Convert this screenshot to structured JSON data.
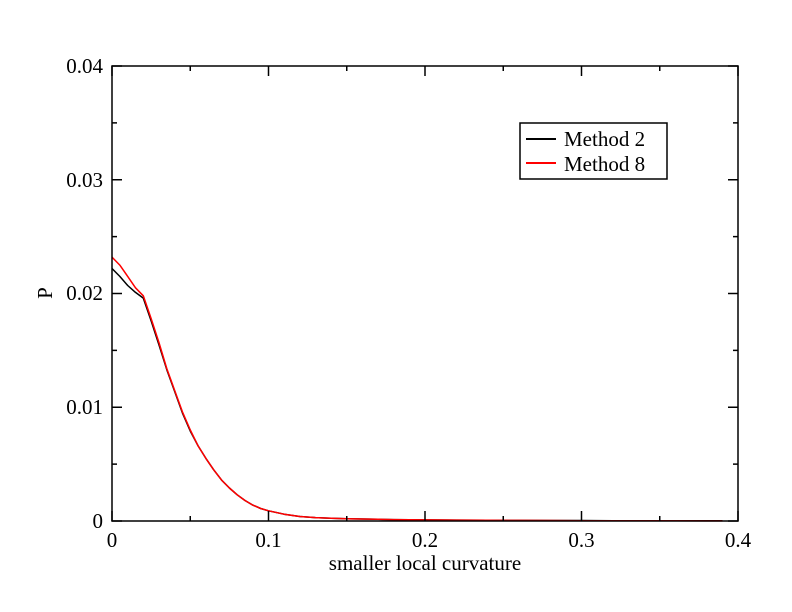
{
  "chart_data": {
    "type": "line",
    "title": "",
    "xlabel": "smaller local curvature",
    "ylabel": "P",
    "xlim": [
      0,
      0.4
    ],
    "ylim": [
      0,
      0.04
    ],
    "x_ticks": [
      "0",
      "0.1",
      "0.2",
      "0.3",
      "0.4"
    ],
    "y_ticks": [
      "0",
      "0.01",
      "0.02",
      "0.03",
      "0.04"
    ],
    "grid": false,
    "legend_position": "top-right",
    "x": [
      0.0,
      0.005,
      0.01,
      0.015,
      0.02,
      0.025,
      0.03,
      0.035,
      0.04,
      0.045,
      0.05,
      0.055,
      0.06,
      0.065,
      0.07,
      0.075,
      0.08,
      0.085,
      0.09,
      0.095,
      0.1,
      0.11,
      0.12,
      0.13,
      0.14,
      0.15,
      0.16,
      0.17,
      0.18,
      0.2,
      0.22,
      0.24,
      0.26,
      0.28,
      0.3,
      0.32,
      0.34,
      0.36,
      0.38,
      0.39
    ],
    "series": [
      {
        "name": "Method 2",
        "color": "#000000",
        "values": [
          0.0222,
          0.0215,
          0.0207,
          0.0201,
          0.0196,
          0.0176,
          0.0155,
          0.0133,
          0.0114,
          0.0095,
          0.0079,
          0.0066,
          0.0055,
          0.0045,
          0.0036,
          0.0029,
          0.0023,
          0.0018,
          0.0014,
          0.0011,
          0.0009,
          0.0006,
          0.0004,
          0.0003,
          0.00025,
          0.0002,
          0.00018,
          0.00015,
          0.00012,
          0.0001,
          8e-05,
          6e-05,
          5e-05,
          4e-05,
          4e-05,
          3e-05,
          3e-05,
          2e-05,
          2e-05,
          2e-05
        ]
      },
      {
        "name": "Method 8",
        "color": "#ff0000",
        "values": [
          0.0232,
          0.0225,
          0.0215,
          0.0205,
          0.0198,
          0.0178,
          0.0157,
          0.0134,
          0.0115,
          0.0096,
          0.008,
          0.0066,
          0.0055,
          0.0045,
          0.0036,
          0.0029,
          0.0023,
          0.0018,
          0.0014,
          0.0011,
          0.0009,
          0.0006,
          0.0004,
          0.0003,
          0.00025,
          0.0002,
          0.00018,
          0.00015,
          0.00012,
          0.0001,
          8e-05,
          6e-05,
          5e-05,
          4e-05,
          3e-05,
          3e-05,
          2e-05,
          2e-05,
          1e-05,
          1e-05
        ]
      }
    ]
  }
}
